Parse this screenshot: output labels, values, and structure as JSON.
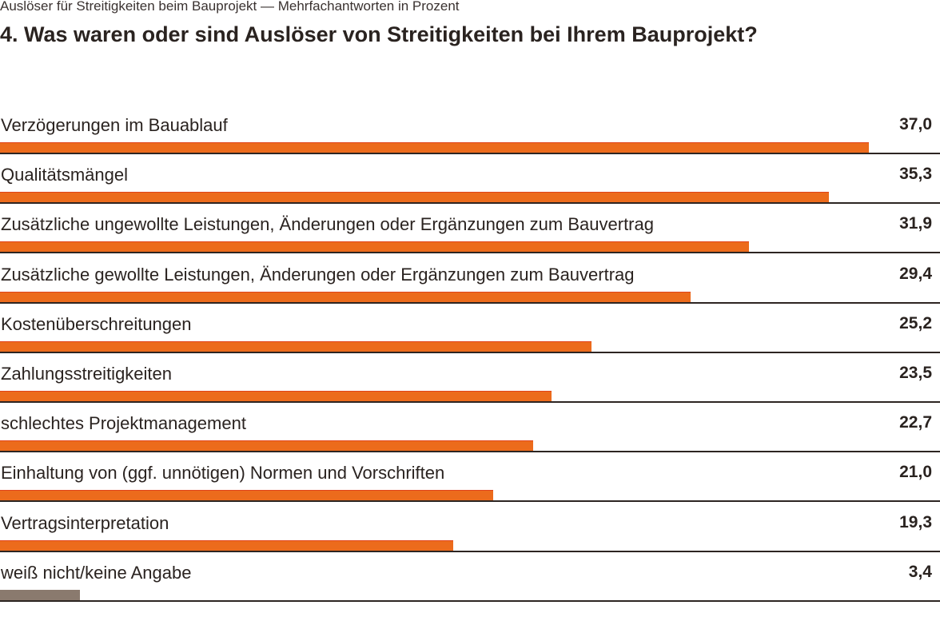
{
  "chart_data": {
    "type": "bar",
    "orientation": "horizontal",
    "subtitle": "Auslöser für Streitigkeiten beim Bauprojekt — Mehrfachantworten in Prozent",
    "title": "4. Was waren oder sind Auslöser von Streitigkeiten bei Ihrem Bauprojekt?",
    "categories": [
      "Verzögerungen im Bauablauf",
      "Qualitätsmängel",
      "Zusätzliche ungewollte Leistungen, Änderungen oder Ergänzungen zum Bauvertrag",
      "Zusätzliche gewollte Leistungen, Änderungen oder Ergänzungen zum Bauvertrag",
      "Kostenüberschreitungen",
      "Zahlungsstreitigkeiten",
      "schlechtes Projektmanagement",
      "Einhaltung von (ggf. unnötigen) Normen und Vorschriften",
      "Vertragsinterpretation",
      "weiß nicht/keine Angabe"
    ],
    "values": [
      37.0,
      35.3,
      31.9,
      29.4,
      25.2,
      23.5,
      22.7,
      21.0,
      19.3,
      3.4
    ],
    "value_labels": [
      "37,0",
      "35,3",
      "31,9",
      "29,4",
      "25,2",
      "23,5",
      "22,7",
      "21,0",
      "19,3",
      "3,4"
    ],
    "colors": {
      "bar": "#ec6b1c",
      "bar_no_answer": "#8a7a6e"
    },
    "grid": false
  }
}
